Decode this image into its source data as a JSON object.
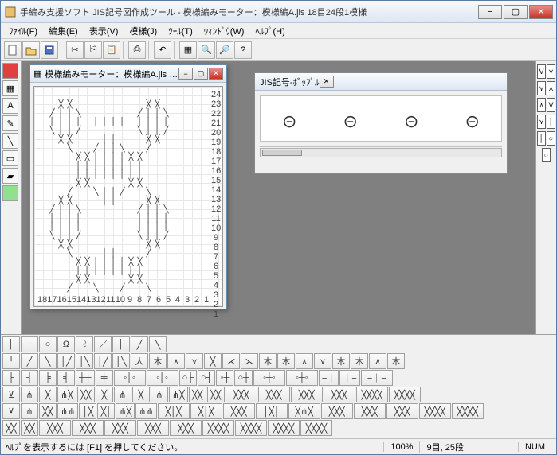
{
  "window": {
    "title": "手編み支援ソフト JIS記号図作成ツール - 模様編みモーター：模様編A.jis 18目24段1模様"
  },
  "menu": {
    "file": "ﾌｧｲﾙ(F)",
    "edit": "編集(E)",
    "view": "表示(V)",
    "pattern": "模様(J)",
    "tool": "ﾂｰﾙ(T)",
    "window": "ｳｨﾝﾄﾞｳ(W)",
    "help": "ﾍﾙﾌﾟ(H)"
  },
  "subwindow_pattern": {
    "title": "模様編みモーター：模様編A.jis 18目...",
    "row_labels": [
      "24",
      "23",
      "22",
      "21",
      "20",
      "19",
      "18",
      "17",
      "16",
      "15",
      "14",
      "13",
      "12",
      "11",
      "10",
      "9",
      "8",
      "7",
      "6",
      "5",
      "4",
      "3",
      "2",
      "1"
    ],
    "col_labels": [
      "18",
      "17",
      "16",
      "15",
      "14",
      "13",
      "12",
      "11",
      "10",
      "9",
      "8",
      "7",
      "6",
      "5",
      "4",
      "3",
      "2",
      "1"
    ]
  },
  "subwindow_bobble": {
    "title": "JIS記号-ﾎﾞｯﾌﾟﾙ"
  },
  "statusbar": {
    "hint": "ﾍﾙﾌﾟを表示するには [F1] を押してください。",
    "zoom": "100%",
    "pos": "9目, 25段",
    "mode": "NUM"
  },
  "symbol_rows": [
    [
      "│",
      "−",
      "○",
      "Ω",
      "ℓ",
      "／",
      "│",
      "╱",
      "╲"
    ],
    [
      "╵",
      "╱",
      "╲",
      "│╱",
      "│╲",
      "│╱",
      "│╲",
      "人",
      "木",
      "⋏",
      "⋎",
      "╳",
      "⋌",
      "⋋",
      "木",
      "木",
      "⋏",
      "⋎",
      "木",
      "木",
      "⋏",
      "木"
    ],
    [
      "├",
      "┤",
      "╞",
      "╡",
      "┼┼",
      "╪",
      "◦│◦",
      "◦│◦",
      "○├",
      "○┤",
      "◦┼",
      "○┼",
      "◦┼◦",
      "◦┼◦",
      "−｜",
      "｜−",
      "−｜−"
    ],
    [
      "⊻",
      "⋔",
      "╳",
      "⋔╳",
      "╳╳",
      "╳",
      "⋔",
      "╳",
      "⋔",
      "⋔╳",
      "╳╳",
      "╳╳",
      "╳╳╳",
      "╳╳╳",
      "╳╳╳",
      "╳╳╳",
      "╳╳╳╳",
      "╳╳╳╳"
    ],
    [
      "⊻",
      "⋔",
      "╳╳",
      "⋔⋔",
      "│╳",
      "╳│",
      "⋔╳",
      "⋔⋔",
      "╳│╳",
      "╳│╳",
      "╳╳╳",
      "│╳│",
      "╳⋔╳",
      "╳╳╳",
      "╳╳╳",
      "╳╳╳",
      "╳╳╳╳",
      "╳╳╳╳"
    ],
    [
      "╳╳",
      "╳╳",
      "╳╳╳",
      "╳╳╳",
      "╳╳╳",
      "╳╳╳",
      "╳╳╳",
      "╳╳╳╳",
      "╳╳╳╳",
      "╳╳╳╳",
      "╳╳╳╳"
    ]
  ],
  "right_palette": [
    "V",
    "⋎",
    "⋎",
    "⋏",
    "⋏",
    "V",
    "⋎",
    "│",
    "│",
    "○",
    "○"
  ]
}
